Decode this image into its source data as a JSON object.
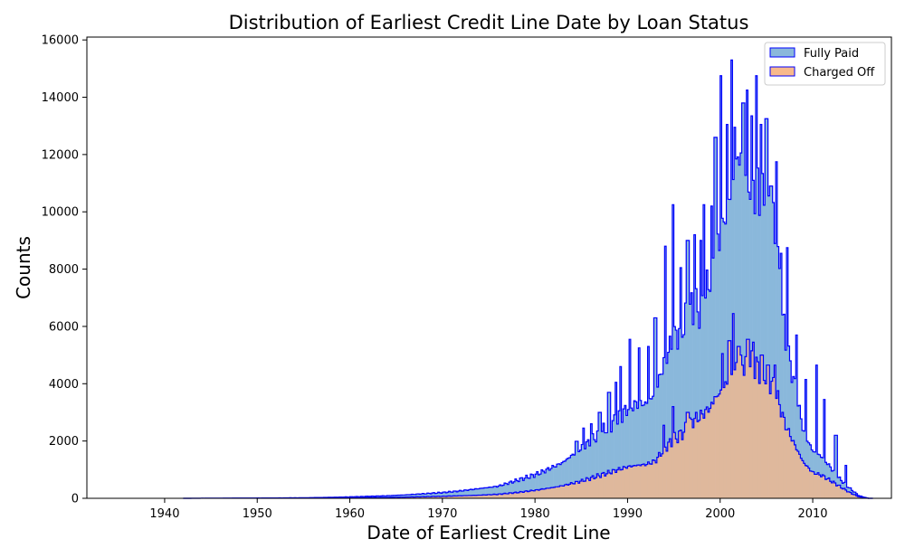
{
  "chart_data": {
    "type": "histogram",
    "title": "Distribution of Earliest Credit Line Date by Loan Status",
    "xlabel": "Date of Earliest Credit Line",
    "ylabel": "Counts",
    "xlim": [
      1931.6,
      2018.5
    ],
    "ylim": [
      0,
      16100
    ],
    "x_ticks": [
      1940,
      1950,
      1960,
      1970,
      1980,
      1990,
      2000,
      2010
    ],
    "y_ticks": [
      0,
      2000,
      4000,
      6000,
      8000,
      10000,
      12000,
      14000,
      16000
    ],
    "grid": false,
    "legend_position": "top-right",
    "edge_color": "#0000ff",
    "series": [
      {
        "name": "Fully Paid",
        "color": "#8ab8db",
        "x": [
          1950,
          1955,
          1958,
          1960,
          1962,
          1964,
          1966,
          1968,
          1970,
          1972,
          1974,
          1976,
          1977,
          1978,
          1979,
          1980,
          1981,
          1982,
          1983,
          1984,
          1985,
          1986,
          1987,
          1988,
          1989,
          1990,
          1991,
          1992,
          1993,
          1994,
          1995,
          1996,
          1997,
          1998,
          1999,
          2000,
          2001,
          2002,
          2003,
          2004,
          2005,
          2006,
          2007,
          2008,
          2009,
          2010,
          2011,
          2012,
          2013,
          2014,
          2015,
          2016
        ],
        "values": [
          10,
          20,
          35,
          50,
          70,
          90,
          120,
          160,
          200,
          260,
          340,
          420,
          520,
          620,
          720,
          820,
          950,
          1100,
          1250,
          1500,
          1750,
          2000,
          2250,
          2550,
          2750,
          3150,
          3300,
          3300,
          3650,
          4850,
          5550,
          6050,
          6650,
          6550,
          7850,
          9050,
          10450,
          12050,
          11050,
          10750,
          10050,
          9050,
          5550,
          4050,
          2350,
          1650,
          1450,
          1050,
          650,
          350,
          90,
          0
        ],
        "spikes": [
          [
            1984.5,
            1990
          ],
          [
            1985.3,
            2450
          ],
          [
            1986.1,
            2600
          ],
          [
            1987.0,
            3000
          ],
          [
            1988.0,
            3700
          ],
          [
            1988.7,
            4050
          ],
          [
            1989.3,
            4600
          ],
          [
            1990.3,
            5550
          ],
          [
            1991.2,
            5250
          ],
          [
            1992.2,
            5300
          ],
          [
            1993.0,
            6300
          ],
          [
            1994.1,
            8800
          ],
          [
            1994.9,
            10250
          ],
          [
            1995.7,
            8050
          ],
          [
            1996.5,
            9000
          ],
          [
            1997.2,
            9200
          ],
          [
            1997.9,
            9000
          ],
          [
            1998.2,
            10250
          ],
          [
            1999.1,
            10200
          ],
          [
            1999.5,
            12600
          ],
          [
            2000.1,
            14750
          ],
          [
            2000.7,
            13050
          ],
          [
            2001.2,
            15300
          ],
          [
            2001.6,
            12950
          ],
          [
            2002.5,
            13800
          ],
          [
            2002.9,
            14250
          ],
          [
            2003.4,
            13350
          ],
          [
            2003.9,
            14750
          ],
          [
            2004.4,
            13050
          ],
          [
            2005.0,
            13250
          ],
          [
            2005.5,
            10900
          ],
          [
            2006.1,
            11750
          ],
          [
            2006.6,
            8550
          ],
          [
            2007.3,
            8750
          ],
          [
            2008.3,
            5700
          ],
          [
            2009.2,
            4150
          ],
          [
            2010.4,
            4650
          ],
          [
            2011.3,
            3450
          ],
          [
            2012.5,
            2200
          ],
          [
            2013.6,
            1150
          ]
        ]
      },
      {
        "name": "Charged Off",
        "color": "#f8b98b",
        "x": [
          1950,
          1955,
          1958,
          1960,
          1962,
          1964,
          1966,
          1968,
          1970,
          1972,
          1974,
          1976,
          1977,
          1978,
          1979,
          1980,
          1981,
          1982,
          1983,
          1984,
          1985,
          1986,
          1987,
          1988,
          1989,
          1990,
          1991,
          1992,
          1993,
          1994,
          1995,
          1996,
          1997,
          1998,
          1999,
          2000,
          2001,
          2002,
          2003,
          2004,
          2005,
          2006,
          2007,
          2008,
          2009,
          2010,
          2011,
          2012,
          2013,
          2014,
          2015,
          2016
        ],
        "values": [
          5,
          8,
          12,
          18,
          25,
          32,
          42,
          55,
          70,
          90,
          110,
          140,
          170,
          200,
          240,
          280,
          330,
          380,
          440,
          520,
          600,
          700,
          800,
          900,
          1000,
          1100,
          1150,
          1180,
          1300,
          1750,
          2050,
          2300,
          2700,
          2900,
          3200,
          3700,
          4150,
          4600,
          4750,
          4550,
          4300,
          3750,
          2600,
          1900,
          1250,
          900,
          800,
          600,
          400,
          200,
          50,
          0
        ],
        "spikes": [
          [
            1993.9,
            2550
          ],
          [
            1994.9,
            3200
          ],
          [
            1996.5,
            3000
          ],
          [
            1999.4,
            3550
          ],
          [
            2000.2,
            5050
          ],
          [
            2001.0,
            5500
          ],
          [
            2001.4,
            6450
          ],
          [
            2002.0,
            5300
          ],
          [
            2003.0,
            5550
          ],
          [
            2003.6,
            5450
          ],
          [
            2004.5,
            5000
          ],
          [
            2005.2,
            4650
          ],
          [
            2005.9,
            4650
          ]
        ]
      }
    ]
  }
}
